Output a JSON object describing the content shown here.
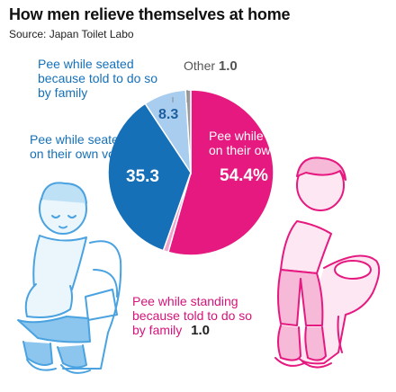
{
  "title": "How men relieve themselves at home",
  "source": "Source: Japan Toilet Labo",
  "chart_data": {
    "type": "pie",
    "title": "How men relieve themselves at home",
    "subtitle": "Source: Japan Toilet Labo",
    "start_angle_deg": 0,
    "slices": [
      {
        "label": "Pee while standing on their own volition",
        "value": 54.4,
        "display": "54.4%",
        "color": "#e5197f"
      },
      {
        "label": "Pee while standing because told to do so by family",
        "value": 1.0,
        "display": "1.0",
        "color": "#f2a3cb"
      },
      {
        "label": "Pee while seated on their own volition",
        "value": 35.3,
        "display": "35.3",
        "color": "#1670b8"
      },
      {
        "label": "Pee while seated because told to do so by family",
        "value": 8.3,
        "display": "8.3",
        "color": "#a9cdee"
      },
      {
        "label": "Other",
        "value": 1.0,
        "display": "1.0",
        "color": "#9a9a9a"
      }
    ]
  },
  "labels": {
    "standing_own": {
      "line1": "Pee while standing",
      "line2": "on their own volition",
      "value": "54.4%"
    },
    "standing_told": {
      "line1": "Pee while standing",
      "line2": "because told to do so",
      "line3": "by family",
      "value": "1.0"
    },
    "seated_own": {
      "line1": "Pee while seated",
      "line2": "on their own volition",
      "value": "35.3"
    },
    "seated_told": {
      "line1": "Pee while seated",
      "line2": "because told to do so",
      "line3": "by family",
      "value": "8.3"
    },
    "other": {
      "text": "Other",
      "value": "1.0"
    }
  },
  "colors": {
    "blue": "#1670b8",
    "light_blue": "#a9cdee",
    "magenta": "#e5197f",
    "light_pink": "#f2a3cb",
    "gray": "#9a9a9a"
  }
}
